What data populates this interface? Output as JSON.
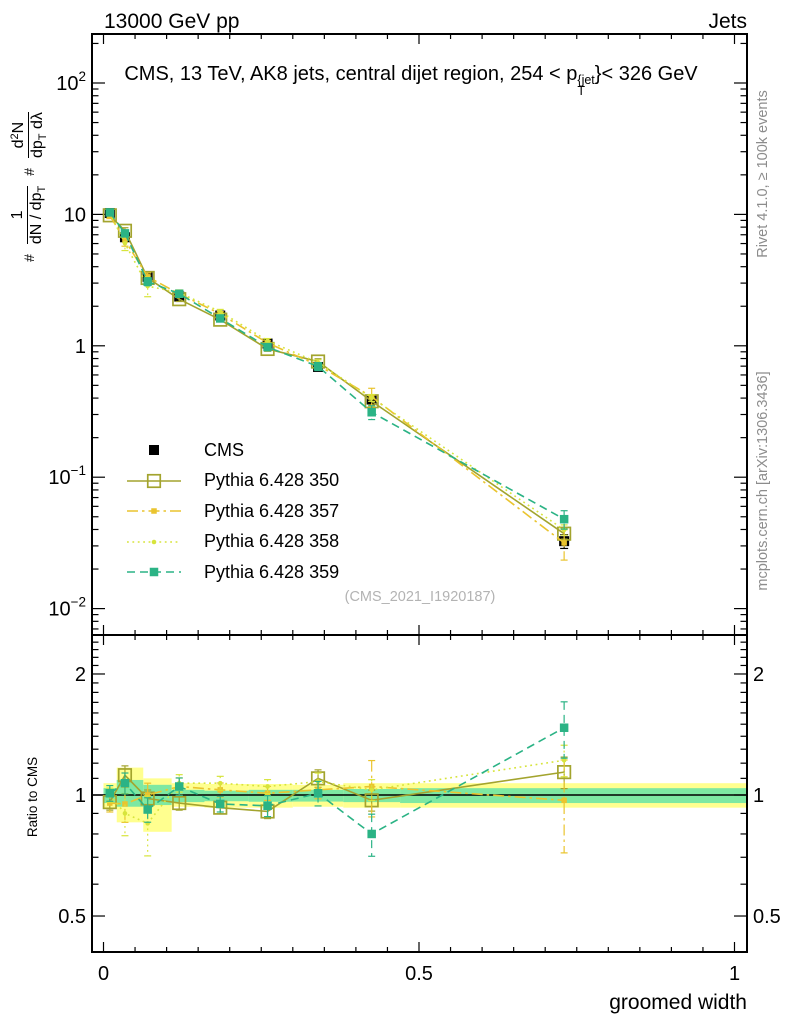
{
  "header": {
    "left": "13000 GeV pp",
    "right": "Jets"
  },
  "plot_title": {
    "prefix": "CMS, 13 TeV, AK8 jets, central dijet region, 254 < p",
    "sup": "{jet",
    "sub": "T",
    "suffix": "}< 326 GeV"
  },
  "watermark": "(CMS_2021_I1920187)",
  "side_notes": {
    "rivet": "Rivet 4.1.0, ≥ 100k events",
    "mcplots": "mcplots.cern.ch [arXiv:1306.3436]"
  },
  "ylabel_main": {
    "hash1": "#",
    "num1": "1",
    "den1a": "dN / dp",
    "den1b": "T",
    "hash2": "#",
    "num2a": "d",
    "num2b": "2",
    "num2c": "N",
    "den2a": "dp",
    "den2b": "T",
    "den2c": " dλ"
  },
  "ratio_ylabel": "Ratio to CMS",
  "xlabel": "groomed width",
  "chart_data": {
    "type": "line",
    "title": "CMS, 13 TeV, AK8 jets, central dijet region, 254 < pT(jet) < 326 GeV",
    "xlabel": "groomed width",
    "ylabel": "# 1/(dN/dpT) d2N/(dpT dlambda)",
    "ratio_label": "Ratio to CMS",
    "xlim": [
      -0.018,
      1.02
    ],
    "ylim_main": [
      0.0063,
      236
    ],
    "ylim_ratio": [
      0.41,
      2.5
    ],
    "yscale": "log",
    "grid": false,
    "legend_position": "middle-left",
    "x": [
      0.01,
      0.034,
      0.07,
      0.12,
      0.185,
      0.26,
      0.34,
      0.425,
      0.73
    ],
    "cms": {
      "label": "CMS",
      "color": "#000000",
      "marker": "cms-square",
      "values": [
        10.25,
        6.7,
        3.35,
        2.37,
        1.7,
        1.04,
        0.69,
        0.39,
        0.0326
      ],
      "err_frac": [
        0.03,
        0.03,
        0.03,
        0.03,
        0.03,
        0.035,
        0.04,
        0.05,
        0.12
      ]
    },
    "series": [
      {
        "name": "Pythia 6.428 350",
        "color": "#a3a42e",
        "dash": "solid",
        "marker": "open-square",
        "ratio": [
          0.96,
          1.12,
          0.98,
          0.955,
          0.93,
          0.91,
          1.1,
          0.97,
          1.14
        ],
        "err_frac": [
          0.045,
          0.055,
          0.05,
          0.04,
          0.035,
          0.04,
          0.05,
          0.06,
          0.09
        ]
      },
      {
        "name": "Pythia 6.428 357",
        "color": "#eac42e",
        "dash": "dashdot",
        "marker": "small-square",
        "ratio": [
          0.955,
          0.95,
          1.0,
          1.05,
          1.03,
          1.01,
          1.03,
          1.05,
          0.97
        ],
        "err_frac": [
          0.05,
          0.1,
          0.07,
          0.05,
          0.04,
          0.04,
          0.05,
          0.16,
          0.26
        ]
      },
      {
        "name": "Pythia 6.428 358",
        "color": "#d7e43c",
        "dash": "dot",
        "marker": "dot",
        "ratio": [
          1.0,
          0.9,
          0.85,
          1.07,
          1.07,
          1.05,
          1.08,
          1.03,
          1.22
        ],
        "err_frac": [
          0.04,
          0.12,
          0.17,
          0.05,
          0.04,
          0.04,
          0.05,
          0.06,
          0.09
        ]
      },
      {
        "name": "Pythia 6.428 359",
        "color": "#2bb385",
        "dash": "dash",
        "marker": "filled-square",
        "ratio": [
          1.01,
          1.07,
          0.92,
          1.05,
          0.95,
          0.94,
          1.01,
          0.8,
          1.47
        ],
        "err_frac": [
          0.045,
          0.06,
          0.07,
          0.05,
          0.045,
          0.06,
          0.07,
          0.12,
          0.16
        ]
      }
    ],
    "bands": {
      "yellow": "#ffff8f",
      "green": "#7ee8a2",
      "bins": [
        {
          "x1": 0.0,
          "x2": 0.021,
          "ylo": 0.93,
          "yhi": 1.07,
          "glo": 0.955,
          "ghi": 1.04
        },
        {
          "x1": 0.021,
          "x2": 0.063,
          "ylo": 0.855,
          "yhi": 1.17,
          "glo": 0.935,
          "ghi": 1.09
        },
        {
          "x1": 0.063,
          "x2": 0.108,
          "ylo": 0.81,
          "yhi": 1.1,
          "glo": 0.944,
          "ghi": 1.06
        },
        {
          "x1": 0.108,
          "x2": 0.16,
          "ylo": 0.935,
          "yhi": 1.07,
          "glo": 0.96,
          "ghi": 1.03
        },
        {
          "x1": 0.16,
          "x2": 0.23,
          "ylo": 0.93,
          "yhi": 1.065,
          "glo": 0.965,
          "ghi": 1.025
        },
        {
          "x1": 0.23,
          "x2": 0.3,
          "ylo": 0.93,
          "yhi": 1.065,
          "glo": 0.962,
          "ghi": 1.03
        },
        {
          "x1": 0.3,
          "x2": 0.38,
          "ylo": 0.935,
          "yhi": 1.06,
          "glo": 0.963,
          "ghi": 1.03
        },
        {
          "x1": 0.38,
          "x2": 0.47,
          "ylo": 0.93,
          "yhi": 1.07,
          "glo": 0.96,
          "ghi": 1.035
        },
        {
          "x1": 0.47,
          "x2": 1.02,
          "ylo": 0.93,
          "yhi": 1.07,
          "glo": 0.955,
          "ghi": 1.04
        }
      ]
    },
    "main_y_ticks": [
      {
        "v": 100,
        "base": "10",
        "exp": "2"
      },
      {
        "v": 10,
        "base": "10",
        "exp": ""
      },
      {
        "v": 1,
        "base": "1",
        "exp": ""
      },
      {
        "v": 0.1,
        "base": "10",
        "exp": "−1"
      },
      {
        "v": 0.01,
        "base": "10",
        "exp": "−2"
      }
    ],
    "ratio_y_ticks": [
      {
        "v": 2,
        "label": "2"
      },
      {
        "v": 1,
        "label": "1"
      },
      {
        "v": 0.5,
        "label": "0.5"
      }
    ],
    "x_ticks": [
      {
        "v": 0,
        "label": "0"
      },
      {
        "v": 0.5,
        "label": "0.5"
      },
      {
        "v": 1,
        "label": "1"
      }
    ]
  }
}
